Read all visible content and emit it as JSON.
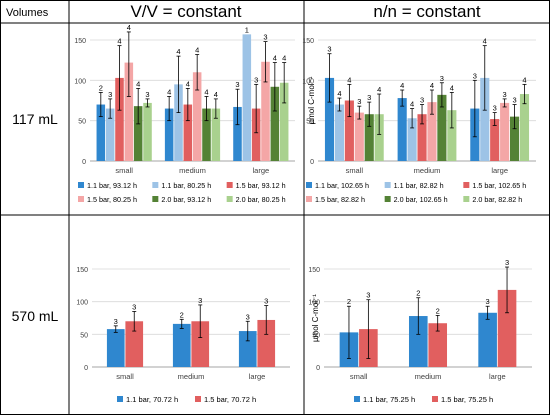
{
  "header": {
    "volumes_label": "Volumes",
    "col1_title": "V/V = constant",
    "col2_title": "n/n = constant"
  },
  "rows": [
    {
      "label": "117 mL"
    },
    {
      "label": "570 mL"
    }
  ],
  "colors": {
    "blue": "#2f87cf",
    "light_blue": "#9dc3e6",
    "red": "#e15f5f",
    "pink": "#f4a6a6",
    "dark_green": "#548235",
    "light_green": "#a9d18e",
    "error_bar": "#000000",
    "grid": "#d9d9d9",
    "border": "#000000"
  },
  "chart_data": [
    {
      "id": "vv_117",
      "type": "bar",
      "categories": [
        "small",
        "medium",
        "large"
      ],
      "ylim": [
        0,
        150
      ],
      "yticks": [
        0,
        50,
        100,
        150
      ],
      "ylabel": "",
      "grid": true,
      "legend_position": "bottom",
      "series": [
        {
          "name": "1.1 bar, 93.12 h",
          "color_key": "blue",
          "values": [
            70,
            65,
            67
          ],
          "errors": [
            15,
            15,
            22
          ],
          "n": [
            "2",
            "4",
            "3"
          ]
        },
        {
          "name": "1.1 bar, 80.25 h",
          "color_key": "light_blue",
          "values": [
            65,
            95,
            157
          ],
          "errors": [
            12,
            35,
            0
          ],
          "n": [
            "3",
            "4",
            "1"
          ]
        },
        {
          "name": "1.5 bar, 93.12 h",
          "color_key": "red",
          "values": [
            103,
            70,
            65
          ],
          "errors": [
            40,
            20,
            30
          ],
          "n": [
            "4",
            "4",
            "3"
          ]
        },
        {
          "name": "1.5 bar, 80.25 h",
          "color_key": "pink",
          "values": [
            122,
            110,
            123
          ],
          "errors": [
            42,
            22,
            25
          ],
          "n": [
            "4",
            "4",
            "3"
          ]
        },
        {
          "name": "2.0 bar, 93.12 h",
          "color_key": "dark_green",
          "values": [
            68,
            65,
            92
          ],
          "errors": [
            22,
            15,
            30
          ],
          "n": [
            "4",
            "4",
            "4"
          ]
        },
        {
          "name": "2.0 bar, 80.25 h",
          "color_key": "light_green",
          "values": [
            72,
            65,
            97
          ],
          "errors": [
            5,
            12,
            25
          ],
          "n": [
            "3",
            "4",
            "4"
          ]
        }
      ]
    },
    {
      "id": "nn_117",
      "type": "bar",
      "categories": [
        "small",
        "medium",
        "large"
      ],
      "ylim": [
        0,
        150
      ],
      "yticks": [
        0,
        50,
        100,
        150
      ],
      "ylabel": "µmol C-mol⁻¹",
      "grid": true,
      "legend_position": "bottom",
      "series": [
        {
          "name": "1.1 bar, 102.65 h",
          "color_key": "blue",
          "values": [
            103,
            78,
            65
          ],
          "errors": [
            30,
            10,
            35
          ],
          "n": [
            "3",
            "4",
            "3"
          ]
        },
        {
          "name": "1.1 bar, 82.82 h",
          "color_key": "light_blue",
          "values": [
            70,
            53,
            103
          ],
          "errors": [
            8,
            12,
            40
          ],
          "n": [
            "4",
            "4",
            "4"
          ]
        },
        {
          "name": "1.5 bar, 102.65 h",
          "color_key": "red",
          "values": [
            75,
            58,
            52
          ],
          "errors": [
            20,
            12,
            8
          ],
          "n": [
            "4",
            "3",
            "3"
          ]
        },
        {
          "name": "1.5 bar, 82.82 h",
          "color_key": "pink",
          "values": [
            60,
            73,
            72
          ],
          "errors": [
            8,
            15,
            5
          ],
          "n": [
            "3",
            "4",
            "3"
          ]
        },
        {
          "name": "2.0 bar, 102.65 h",
          "color_key": "dark_green",
          "values": [
            58,
            82,
            55
          ],
          "errors": [
            15,
            15,
            15
          ],
          "n": [
            "3",
            "3",
            "3"
          ]
        },
        {
          "name": "2.0 bar, 82.82 h",
          "color_key": "light_green",
          "values": [
            58,
            63,
            83
          ],
          "errors": [
            25,
            22,
            12
          ],
          "n": [
            "4",
            "4",
            "4"
          ]
        }
      ]
    },
    {
      "id": "vv_570",
      "type": "bar",
      "categories": [
        "small",
        "medium",
        "large"
      ],
      "ylim": [
        0,
        150
      ],
      "yticks": [
        0,
        50,
        100,
        150
      ],
      "ylabel": "",
      "grid": true,
      "legend_position": "bottom",
      "series": [
        {
          "name": "1.1 bar, 70.72 h",
          "color_key": "blue",
          "values": [
            58,
            66,
            55
          ],
          "errors": [
            5,
            7,
            15
          ],
          "n": [
            "3",
            "2",
            "3"
          ]
        },
        {
          "name": "1.5 bar, 70.72 h",
          "color_key": "red",
          "values": [
            70,
            70,
            72
          ],
          "errors": [
            15,
            25,
            22
          ],
          "n": [
            "3",
            "3",
            "3"
          ]
        }
      ]
    },
    {
      "id": "nn_570",
      "type": "bar",
      "categories": [
        "small",
        "medium",
        "large"
      ],
      "ylim": [
        0,
        150
      ],
      "yticks": [
        0,
        50,
        100,
        150
      ],
      "ylabel": "µmol C-mol⁻¹",
      "grid": true,
      "legend_position": "bottom",
      "series": [
        {
          "name": "1.1 bar, 75.25 h",
          "color_key": "blue",
          "values": [
            53,
            78,
            83
          ],
          "errors": [
            40,
            28,
            10
          ],
          "n": [
            "2",
            "2",
            "3"
          ]
        },
        {
          "name": "1.5 bar, 75.25 h",
          "color_key": "red",
          "values": [
            58,
            67,
            118
          ],
          "errors": [
            45,
            12,
            35
          ],
          "n": [
            "3",
            "2",
            "3"
          ]
        }
      ]
    }
  ]
}
